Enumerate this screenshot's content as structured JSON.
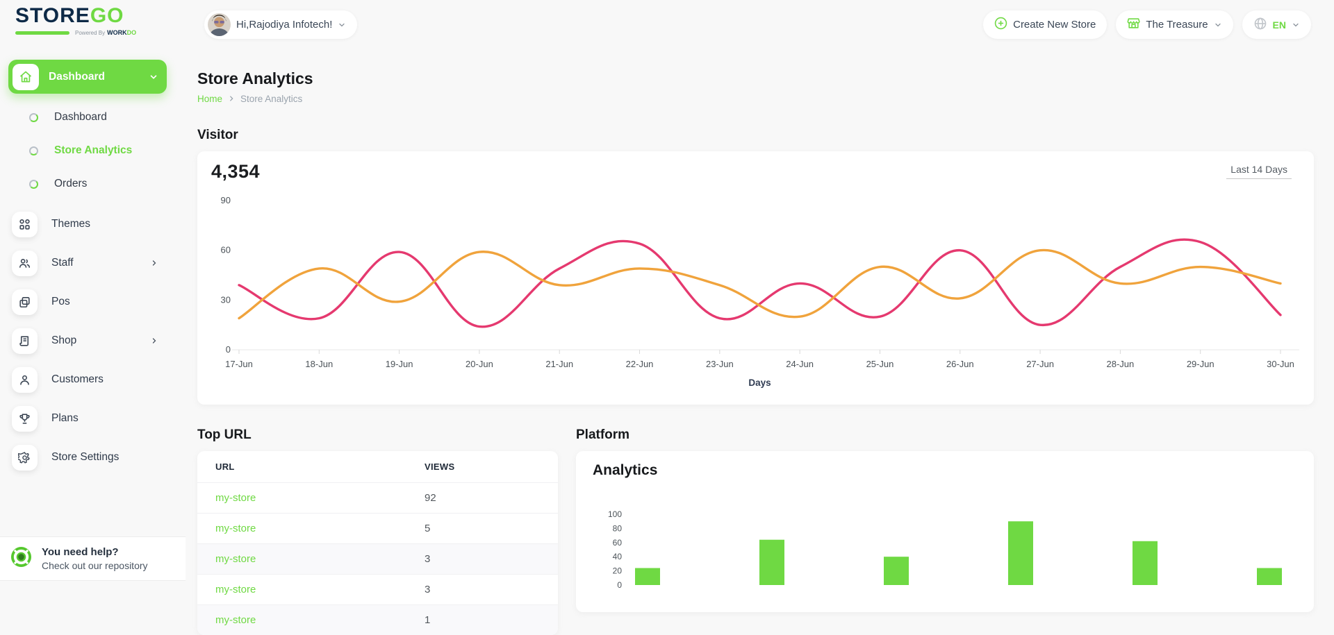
{
  "brand": {
    "name_dark": "STORE",
    "name_accent": "GO",
    "powered_by": "Powered By",
    "powered_word": "WORK",
    "powered_word_accent": "DO"
  },
  "header": {
    "greeting": "Hi,Rajodiya Infotech!",
    "create_store_label": "Create New Store",
    "store_selector_label": "The Treasure",
    "language_label": "EN"
  },
  "sidebar": {
    "group_label": "Dashboard",
    "sub_items": [
      {
        "label": "Dashboard"
      },
      {
        "label": "Store Analytics"
      },
      {
        "label": "Orders"
      }
    ],
    "items": [
      {
        "label": "Themes"
      },
      {
        "label": "Staff"
      },
      {
        "label": "Pos"
      },
      {
        "label": "Shop"
      },
      {
        "label": "Customers"
      },
      {
        "label": "Plans"
      },
      {
        "label": "Store Settings"
      }
    ],
    "help": {
      "title": "You need help?",
      "subtitle": "Check out our repository"
    }
  },
  "page": {
    "title": "Store Analytics",
    "breadcrumb": {
      "home": "Home",
      "current": "Store Analytics"
    }
  },
  "visitor": {
    "section_title": "Visitor",
    "total": "4,354",
    "range_selector": "Last 14 Days"
  },
  "top_url": {
    "section_title": "Top URL",
    "columns": {
      "url": "URL",
      "views": "VIEWS"
    },
    "rows": [
      {
        "url": "my-store",
        "views": "92"
      },
      {
        "url": "my-store",
        "views": "5"
      },
      {
        "url": "my-store",
        "views": "3"
      },
      {
        "url": "my-store",
        "views": "3"
      },
      {
        "url": "my-store",
        "views": "1"
      }
    ]
  },
  "platform": {
    "section_title": "Platform",
    "card_title": "Analytics"
  },
  "colors": {
    "primary_green": "#6fd943",
    "line_pink": "#e5396f",
    "line_orange": "#f0a33c",
    "bar_green": "#6fd943"
  },
  "chart_data": [
    {
      "id": "visitor-line",
      "type": "line",
      "title": "Visitor",
      "x": [
        "17-Jun",
        "18-Jun",
        "19-Jun",
        "20-Jun",
        "21-Jun",
        "22-Jun",
        "23-Jun",
        "24-Jun",
        "25-Jun",
        "26-Jun",
        "27-Jun",
        "28-Jun",
        "29-Jun",
        "30-Jun"
      ],
      "series": [
        {
          "name": "pink-series",
          "color": "#e5396f",
          "values": [
            39,
            19,
            59,
            14,
            49,
            64,
            19,
            40,
            20,
            60,
            15,
            50,
            65,
            21
          ]
        },
        {
          "name": "orange-series",
          "color": "#f0a33c",
          "values": [
            19,
            49,
            29,
            59,
            39,
            49,
            39,
            20,
            50,
            31,
            60,
            40,
            50,
            40
          ]
        }
      ],
      "xlabel": "Days",
      "ylabel": "",
      "ylim": [
        0,
        90
      ],
      "yticks": [
        0,
        30,
        60,
        90
      ],
      "grid": false,
      "legend": "none",
      "curve": "smooth"
    },
    {
      "id": "platform-bar",
      "type": "bar",
      "title": "Analytics",
      "categories": [
        "",
        "",
        "",
        "",
        "",
        ""
      ],
      "values": [
        24,
        64,
        40,
        90,
        62,
        24
      ],
      "xlabel": "",
      "ylabel": "",
      "ylim": [
        0,
        100
      ],
      "yticks": [
        0,
        20,
        40,
        60,
        80,
        100
      ],
      "bar_color": "#6fd943",
      "grid": false,
      "legend": "none"
    }
  ]
}
